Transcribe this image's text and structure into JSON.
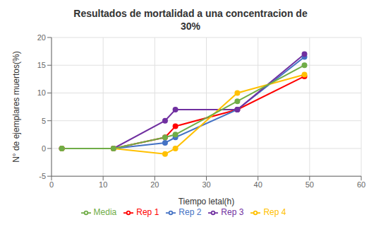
{
  "chart_data": {
    "type": "line",
    "title": "Resultados de mortalidad a una concentracion de\n30%",
    "xlabel": "Tiempo letal(h)",
    "ylabel": "N° de ejemplares muertos(%)",
    "x": [
      2,
      12,
      22,
      24,
      36,
      49
    ],
    "series": [
      {
        "name": "Rep 1",
        "color": "#FF0000",
        "values": [
          0,
          0,
          2,
          4,
          7,
          13
        ]
      },
      {
        "name": "Rep 2",
        "color": "#4472C4",
        "values": [
          0,
          0,
          1,
          2,
          7,
          16.5
        ]
      },
      {
        "name": "Rep 3",
        "color": "#7030A0",
        "values": [
          0,
          0,
          5,
          7,
          7,
          17
        ]
      },
      {
        "name": "Rep 4",
        "color": "#FFC000",
        "values": [
          0,
          0,
          -1,
          0,
          10,
          13.3
        ]
      },
      {
        "name": "Media",
        "color": "#70AD47",
        "values": [
          0,
          0,
          2,
          2.5,
          8.5,
          15
        ]
      }
    ],
    "xlim": [
      0,
      60
    ],
    "ylim": [
      -5,
      20
    ],
    "xticks": [
      0,
      10,
      20,
      30,
      40,
      50,
      60
    ],
    "yticks": [
      -5,
      0,
      5,
      10,
      15,
      20
    ],
    "grid": true,
    "legend": "bottom",
    "marker": "circle"
  }
}
